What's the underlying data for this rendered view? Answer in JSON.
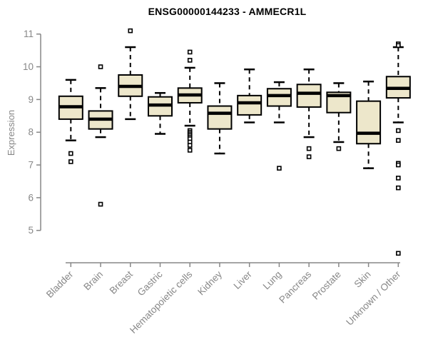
{
  "chart_data": {
    "type": "boxplot",
    "title": "ENSG00000144233 - AMMECR1L",
    "ylabel": "Expression",
    "xlabel": "",
    "ylim": [
      5,
      11
    ],
    "yticks": [
      5,
      6,
      7,
      8,
      9,
      10,
      11
    ],
    "grid": false,
    "legend": "none",
    "categories": [
      "Bladder",
      "Brain",
      "Breast",
      "Gastric",
      "Hematopoietic cells",
      "Kidney",
      "Liver",
      "Lung",
      "Pancreas",
      "Prostate",
      "Skin",
      "Unknown / Other"
    ],
    "series": [
      {
        "name": "Bladder",
        "whisker_low": 7.75,
        "q1": 8.4,
        "median": 8.78,
        "q3": 9.1,
        "whisker_high": 9.6,
        "outliers": [
          7.35,
          7.1
        ]
      },
      {
        "name": "Brain",
        "whisker_low": 7.85,
        "q1": 8.1,
        "median": 8.4,
        "q3": 8.65,
        "whisker_high": 9.35,
        "outliers": [
          10.0,
          5.8
        ]
      },
      {
        "name": "Breast",
        "whisker_low": 8.4,
        "q1": 9.1,
        "median": 9.4,
        "q3": 9.75,
        "whisker_high": 10.6,
        "outliers": [
          11.1
        ]
      },
      {
        "name": "Gastric",
        "whisker_low": 7.95,
        "q1": 8.5,
        "median": 8.83,
        "q3": 9.08,
        "whisker_high": 9.2,
        "outliers": []
      },
      {
        "name": "Hematopoietic cells",
        "whisker_low": 8.2,
        "q1": 8.9,
        "median": 9.14,
        "q3": 9.35,
        "whisker_high": 9.97,
        "outliers": [
          10.45,
          10.2,
          8.05,
          8.0,
          7.95,
          7.9,
          7.85,
          7.8,
          7.7,
          7.6,
          7.45
        ]
      },
      {
        "name": "Kidney",
        "whisker_low": 7.35,
        "q1": 8.1,
        "median": 8.58,
        "q3": 8.8,
        "whisker_high": 9.5,
        "outliers": []
      },
      {
        "name": "Liver",
        "whisker_low": 8.3,
        "q1": 8.53,
        "median": 8.9,
        "q3": 9.12,
        "whisker_high": 9.92,
        "outliers": []
      },
      {
        "name": "Lung",
        "whisker_low": 8.3,
        "q1": 8.8,
        "median": 9.12,
        "q3": 9.33,
        "whisker_high": 9.53,
        "outliers": [
          6.9
        ]
      },
      {
        "name": "Pancreas",
        "whisker_low": 7.85,
        "q1": 8.77,
        "median": 9.19,
        "q3": 9.46,
        "whisker_high": 9.92,
        "outliers": [
          7.5,
          7.25
        ]
      },
      {
        "name": "Prostate",
        "whisker_low": 7.7,
        "q1": 8.6,
        "median": 9.12,
        "q3": 9.22,
        "whisker_high": 9.5,
        "outliers": [
          7.5
        ]
      },
      {
        "name": "Skin",
        "whisker_low": 6.9,
        "q1": 7.65,
        "median": 7.97,
        "q3": 8.95,
        "whisker_high": 9.55,
        "outliers": []
      },
      {
        "name": "Unknown / Other",
        "whisker_low": 8.3,
        "q1": 9.05,
        "median": 9.34,
        "q3": 9.7,
        "whisker_high": 10.6,
        "outliers": [
          10.7,
          10.65,
          8.05,
          7.75,
          7.05,
          7.0,
          6.6,
          6.3,
          4.3
        ]
      }
    ],
    "style": {
      "box_fill": "#EDE7CB",
      "box_stroke": "#000000",
      "median_color": "#000000",
      "whisker_color": "#000000",
      "outlier_fill": "#ffffff",
      "outlier_stroke": "#000000",
      "axis_color": "#878787",
      "title_color": "#000000",
      "background": "#ffffff"
    }
  }
}
